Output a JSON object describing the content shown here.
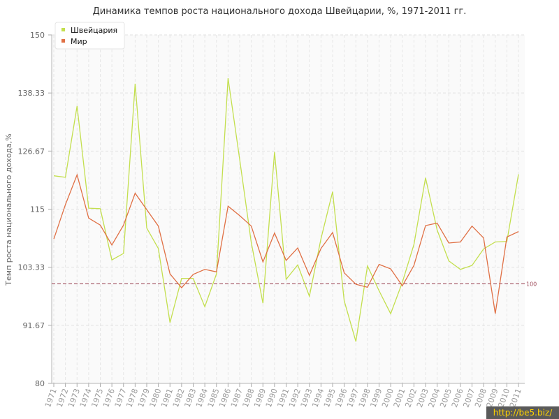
{
  "chart_data": {
    "type": "line",
    "title": "Динамика темпов роста национального дохода Швейцарии, %, 1971-2011 гг.",
    "ylabel": "Темп роста национального дохода,%",
    "xlabel": "",
    "ylim": [
      80,
      150
    ],
    "yticks": [
      "80",
      "91.67",
      "103.33",
      "115",
      "126.67",
      "138.33",
      "150"
    ],
    "grid": true,
    "legend_position": "top-left",
    "categories": [
      "1971",
      "1972",
      "1973",
      "1974",
      "1975",
      "1976",
      "1977",
      "1978",
      "1979",
      "1980",
      "1981",
      "1982",
      "1983",
      "1984",
      "1985",
      "1986",
      "1987",
      "1988",
      "1989",
      "1990",
      "1991",
      "1992",
      "1993",
      "1994",
      "1995",
      "1996",
      "1997",
      "1998",
      "1999",
      "2000",
      "2001",
      "2002",
      "2003",
      "2004",
      "2005",
      "2006",
      "2007",
      "2008",
      "2009",
      "2010",
      "2011"
    ],
    "series": [
      {
        "name": "Швейцария",
        "color": "#c3df4e",
        "values": [
          121.7,
          121.4,
          135.7,
          115.2,
          115.1,
          104.8,
          106.1,
          140.2,
          111.2,
          107.1,
          92.2,
          101.1,
          101.1,
          95.4,
          102.0,
          141.3,
          125.0,
          108.3,
          96.1,
          126.5,
          100.9,
          103.8,
          97.5,
          109.1,
          118.5,
          96.6,
          88.4,
          103.6,
          98.6,
          94.0,
          100.3,
          107.9,
          121.3,
          110.8,
          104.6,
          102.9,
          103.7,
          107.0,
          108.4,
          108.5,
          122.0
        ]
      },
      {
        "name": "Мир",
        "color": "#e07045",
        "values": [
          109.0,
          115.9,
          121.9,
          113.2,
          111.8,
          107.8,
          111.8,
          118.2,
          114.9,
          111.6,
          102.0,
          99.2,
          101.9,
          102.9,
          102.4,
          115.6,
          113.7,
          111.6,
          104.4,
          110.2,
          104.7,
          107.2,
          101.7,
          107.1,
          110.3,
          102.2,
          99.9,
          99.3,
          103.9,
          103.0,
          99.6,
          103.7,
          111.7,
          112.2,
          108.2,
          108.4,
          111.6,
          109.2,
          94.0,
          109.4,
          110.5
        ]
      }
    ],
    "reference_line": {
      "value": 100,
      "label": "100",
      "color": "#9e4b5a"
    }
  },
  "watermark": "http://be5.biz/"
}
